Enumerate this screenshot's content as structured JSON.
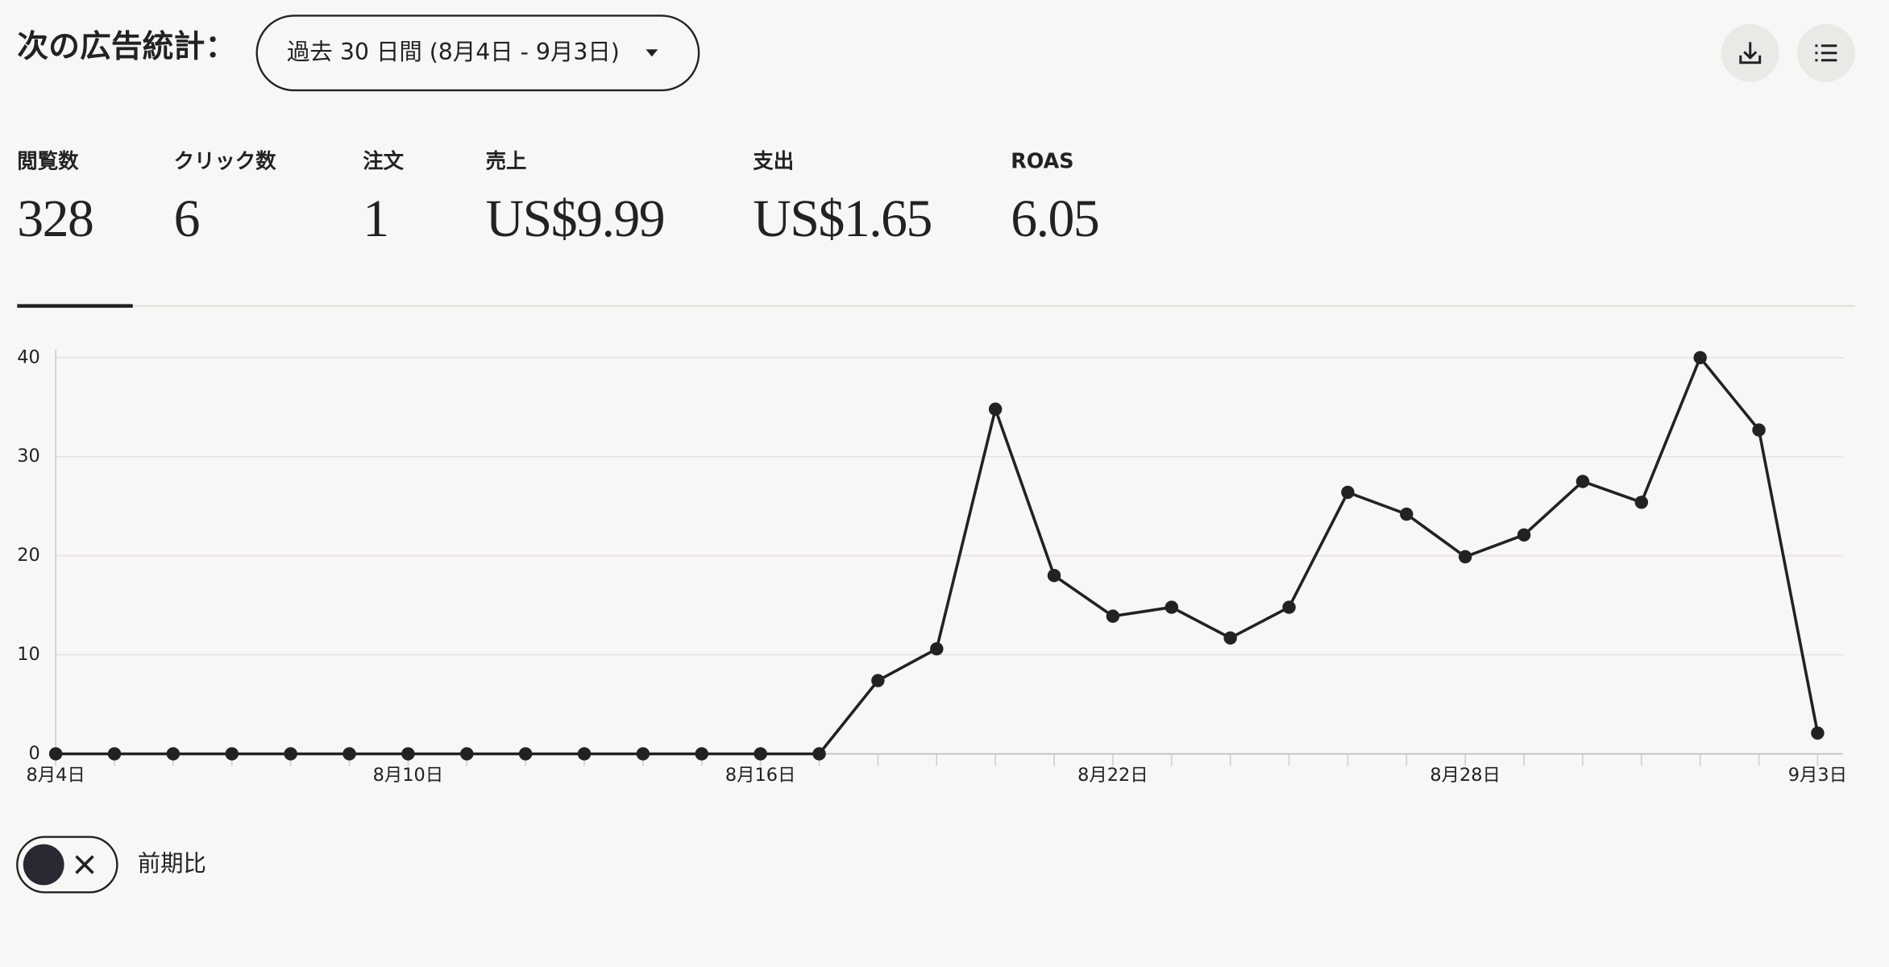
{
  "header": {
    "title": "次の広告統計：",
    "date_range": "過去 30 日間 (8月4日 - 9月3日)"
  },
  "metrics": [
    {
      "label": "閲覧数",
      "value": "328"
    },
    {
      "label": "クリック数",
      "value": "6"
    },
    {
      "label": "注文",
      "value": "1"
    },
    {
      "label": "売上",
      "value": "US$9.99"
    },
    {
      "label": "支出",
      "value": "US$1.65"
    },
    {
      "label": "ROAS",
      "value": "6.05"
    }
  ],
  "chart_data": {
    "type": "line",
    "categories": [
      "8月4日",
      null,
      null,
      null,
      null,
      null,
      "8月10日",
      null,
      null,
      null,
      null,
      null,
      "8月16日",
      null,
      null,
      null,
      null,
      null,
      "8月22日",
      null,
      null,
      null,
      null,
      null,
      "8月28日",
      null,
      null,
      null,
      null,
      null,
      "9月3日"
    ],
    "values": [
      0,
      0,
      0,
      0,
      0,
      0,
      0,
      0,
      0,
      0,
      0,
      0,
      0,
      0,
      7.4,
      10.6,
      34.8,
      18,
      13.9,
      14.8,
      11.7,
      14.8,
      26.4,
      24.2,
      19.9,
      22.1,
      27.5,
      25.4,
      40,
      32.7,
      2.1
    ],
    "color": "#222222",
    "ylim": [
      0,
      40
    ],
    "yticks": [
      0,
      10,
      20,
      30,
      40
    ],
    "grid": true
  },
  "comparison_toggle": {
    "label": "前期比"
  }
}
